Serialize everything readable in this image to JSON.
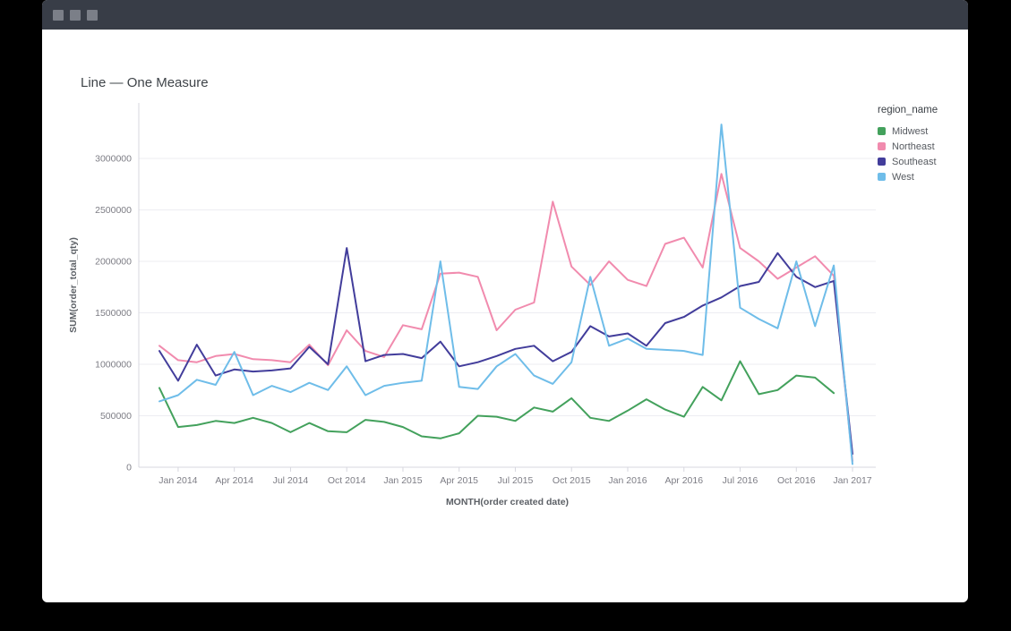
{
  "window": {
    "controls": [
      "window-button",
      "window-button",
      "window-button"
    ]
  },
  "chart": {
    "title": "Line — One Measure"
  },
  "chart_data": {
    "type": "line",
    "title": "Line — One Measure",
    "xlabel": "MONTH(order created date)",
    "ylabel": "SUM(order_total_qty)",
    "legend_title": "region_name",
    "legend_position": "right",
    "grid": true,
    "ylim": [
      0,
      3450000
    ],
    "y_ticks": [
      0,
      500000,
      1000000,
      1500000,
      2000000,
      2500000,
      3000000
    ],
    "x": [
      "Dec 2013",
      "Jan 2014",
      "Feb 2014",
      "Mar 2014",
      "Apr 2014",
      "May 2014",
      "Jun 2014",
      "Jul 2014",
      "Aug 2014",
      "Sep 2014",
      "Oct 2014",
      "Nov 2014",
      "Dec 2014",
      "Jan 2015",
      "Feb 2015",
      "Mar 2015",
      "Apr 2015",
      "May 2015",
      "Jun 2015",
      "Jul 2015",
      "Aug 2015",
      "Sep 2015",
      "Oct 2015",
      "Nov 2015",
      "Dec 2015",
      "Jan 2016",
      "Feb 2016",
      "Mar 2016",
      "Apr 2016",
      "May 2016",
      "Jun 2016",
      "Jul 2016",
      "Aug 2016",
      "Sep 2016",
      "Oct 2016",
      "Nov 2016",
      "Dec 2016",
      "Jan 2017"
    ],
    "x_tick_labels": [
      "Jan 2014",
      "Apr 2014",
      "Jul 2014",
      "Oct 2014",
      "Jan 2015",
      "Apr 2015",
      "Jul 2015",
      "Oct 2015",
      "Jan 2016",
      "Apr 2016",
      "Jul 2016",
      "Oct 2016",
      "Jan 2017"
    ],
    "series": [
      {
        "name": "Midwest",
        "color": "#43a15c",
        "values": [
          770000,
          390000,
          410000,
          450000,
          430000,
          480000,
          430000,
          340000,
          430000,
          350000,
          340000,
          460000,
          440000,
          390000,
          300000,
          280000,
          330000,
          500000,
          490000,
          450000,
          580000,
          540000,
          670000,
          480000,
          450000,
          550000,
          660000,
          560000,
          490000,
          780000,
          650000,
          1030000,
          710000,
          750000,
          890000,
          870000,
          720000,
          null
        ]
      },
      {
        "name": "Northeast",
        "color": "#f18bae",
        "values": [
          1180000,
          1040000,
          1020000,
          1080000,
          1100000,
          1050000,
          1040000,
          1020000,
          1190000,
          990000,
          1330000,
          1130000,
          1070000,
          1380000,
          1340000,
          1880000,
          1890000,
          1850000,
          1330000,
          1530000,
          1600000,
          2580000,
          1950000,
          1770000,
          2000000,
          1820000,
          1760000,
          2170000,
          2230000,
          1940000,
          2850000,
          2130000,
          2000000,
          1830000,
          1940000,
          2050000,
          1860000,
          60000
        ]
      },
      {
        "name": "Southeast",
        "color": "#423d9b",
        "values": [
          1130000,
          840000,
          1190000,
          890000,
          950000,
          930000,
          940000,
          960000,
          1170000,
          1000000,
          2130000,
          1030000,
          1090000,
          1100000,
          1060000,
          1220000,
          980000,
          1020000,
          1080000,
          1150000,
          1180000,
          1030000,
          1120000,
          1370000,
          1270000,
          1300000,
          1180000,
          1400000,
          1460000,
          1570000,
          1650000,
          1760000,
          1800000,
          2080000,
          1850000,
          1750000,
          1810000,
          130000
        ]
      },
      {
        "name": "West",
        "color": "#6fbde9",
        "values": [
          640000,
          700000,
          850000,
          800000,
          1120000,
          700000,
          790000,
          730000,
          820000,
          750000,
          980000,
          700000,
          790000,
          820000,
          840000,
          2000000,
          780000,
          760000,
          980000,
          1100000,
          890000,
          810000,
          1020000,
          1850000,
          1180000,
          1250000,
          1150000,
          1140000,
          1130000,
          1090000,
          3330000,
          1550000,
          1440000,
          1350000,
          2000000,
          1370000,
          1960000,
          30000
        ]
      }
    ],
    "colors": {
      "grid": "#ededf2",
      "axis": "#d7d7df",
      "tick_label": "#7d7d85",
      "axis_title": "#5c6066"
    }
  }
}
